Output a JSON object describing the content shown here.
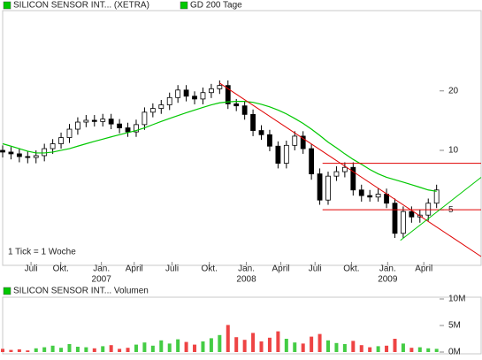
{
  "chart_data": [
    {
      "type": "candlestick",
      "x": [
        0,
        3,
        6,
        9,
        12,
        15,
        18,
        21,
        24,
        27,
        30,
        33,
        36,
        39,
        42,
        45,
        48,
        51,
        54,
        57,
        60,
        63,
        66,
        69,
        72,
        75,
        78,
        81,
        84,
        87,
        90,
        93,
        96,
        99,
        102,
        105,
        108,
        111,
        114,
        117,
        120,
        123,
        126,
        129,
        132,
        135,
        138,
        141,
        144,
        147,
        150,
        153,
        156
      ],
      "series": [
        {
          "name": "SILICON SENSOR INT... (XETRA)",
          "color": "#00c800",
          "candle_color": "#000000",
          "open": [
            10.0,
            9.8,
            9.6,
            9.3,
            9.2,
            9.4,
            10.2,
            10.8,
            11.6,
            12.8,
            13.9,
            14.2,
            14.0,
            14.4,
            13.6,
            13.0,
            12.4,
            13.5,
            15.6,
            16.3,
            17.0,
            18.5,
            20.2,
            18.8,
            18.2,
            19.6,
            20.5,
            21.3,
            17.2,
            16.8,
            15.2,
            12.6,
            12.0,
            10.5,
            8.6,
            10.6,
            11.8,
            10.2,
            7.6,
            5.6,
            7.4,
            7.8,
            8.2,
            6.3,
            5.9,
            5.8,
            6.0,
            5.4,
            3.8,
            4.9,
            4.6,
            4.7,
            5.4
          ],
          "high": [
            10.6,
            10.4,
            10.2,
            9.9,
            10.0,
            10.8,
            11.4,
            12.3,
            13.6,
            14.7,
            15.1,
            15.1,
            15.3,
            15.3,
            14.4,
            13.8,
            14.3,
            16.5,
            17.3,
            18.0,
            19.6,
            21.4,
            21.4,
            19.9,
            20.8,
            21.7,
            22.6,
            22.6,
            18.2,
            17.8,
            16.1,
            13.4,
            12.7,
            11.1,
            11.2,
            12.5,
            12.5,
            10.8,
            8.1,
            7.8,
            8.3,
            8.7,
            8.7,
            6.7,
            6.3,
            6.4,
            6.4,
            5.7,
            5.2,
            5.2,
            5.0,
            5.7,
            6.7
          ],
          "low": [
            9.2,
            9.0,
            8.7,
            8.6,
            8.6,
            8.8,
            9.6,
            10.2,
            10.9,
            12.0,
            13.1,
            13.2,
            13.2,
            12.8,
            12.2,
            11.7,
            11.7,
            12.7,
            14.7,
            15.3,
            16.0,
            17.4,
            17.7,
            17.1,
            17.1,
            18.4,
            19.3,
            16.2,
            15.8,
            14.3,
            11.8,
            11.3,
            9.9,
            8.1,
            8.1,
            10.0,
            9.6,
            7.1,
            5.3,
            5.3,
            7.0,
            7.3,
            5.9,
            5.5,
            5.5,
            5.5,
            5.1,
            3.6,
            3.6,
            4.3,
            4.3,
            4.4,
            5.1
          ],
          "close": [
            9.8,
            9.6,
            9.3,
            9.2,
            9.4,
            10.2,
            10.8,
            11.6,
            12.8,
            13.9,
            14.2,
            14.0,
            14.4,
            13.6,
            13.0,
            12.4,
            13.5,
            15.6,
            16.3,
            17.0,
            18.5,
            20.2,
            18.8,
            18.2,
            19.6,
            20.5,
            21.3,
            17.2,
            16.8,
            15.2,
            12.6,
            12.0,
            10.5,
            8.6,
            10.6,
            11.8,
            10.2,
            7.6,
            5.6,
            7.4,
            7.8,
            8.2,
            6.3,
            5.9,
            5.8,
            6.0,
            5.4,
            3.8,
            4.9,
            4.6,
            4.7,
            5.4,
            6.3
          ]
        },
        {
          "name": "GD 200 Tage",
          "color": "#00c800",
          "values": [
            10.8,
            10.5,
            10.2,
            9.9,
            9.7,
            9.7,
            9.8,
            10.0,
            10.2,
            10.5,
            10.8,
            11.1,
            11.4,
            11.7,
            12.0,
            12.3,
            12.6,
            13.0,
            13.5,
            14.0,
            14.5,
            15.0,
            15.5,
            16.0,
            16.5,
            17.0,
            17.4,
            17.6,
            17.7,
            17.7,
            17.5,
            17.1,
            16.6,
            16.0,
            15.3,
            14.5,
            13.7,
            12.8,
            11.9,
            11.0,
            10.3,
            9.6,
            9.0,
            8.5,
            8.0,
            7.6,
            7.3,
            7.1,
            6.9,
            6.7,
            6.5,
            6.3,
            6.2
          ]
        }
      ],
      "xlim": [
        0,
        172
      ],
      "xticks": [
        {
          "value": 10.2,
          "label": "Juli"
        },
        {
          "value": 20.9,
          "label": "Okt."
        },
        {
          "value": 35.5,
          "label": "Jan."
        },
        {
          "value": 47.3,
          "label": "April"
        },
        {
          "value": 60.9,
          "label": "Juli"
        },
        {
          "value": 74.3,
          "label": "Okt."
        },
        {
          "value": 87.6,
          "label": "Jan."
        },
        {
          "value": 100,
          "label": "April"
        },
        {
          "value": 112.3,
          "label": "Juli"
        },
        {
          "value": 125.4,
          "label": "Okt."
        },
        {
          "value": 138.4,
          "label": "Jan."
        },
        {
          "value": 151.4,
          "label": "April"
        }
      ],
      "year_labels": [
        {
          "value": 35.5,
          "label": "2007"
        },
        {
          "value": 87.6,
          "label": "2008"
        },
        {
          "value": 138.4,
          "label": "2009"
        }
      ],
      "ylim": [
        2.9,
        51
      ],
      "log_scale": true,
      "yticks": [
        5,
        10,
        20
      ],
      "annotation": "1 Tick = 1 Woche",
      "trendlines": [
        {
          "color": "#e00000",
          "x": [
            78,
            172
          ],
          "y": [
            21.9,
            2.9
          ]
        },
        {
          "color": "#e00000",
          "x": [
            115,
            172
          ],
          "y": [
            8.6,
            8.6
          ]
        },
        {
          "color": "#e00000",
          "x": [
            115,
            172
          ],
          "y": [
            5,
            5
          ]
        },
        {
          "color": "#00c800",
          "x": [
            143,
            172
          ],
          "y": [
            3.5,
            7.3
          ]
        }
      ]
    },
    {
      "type": "bar",
      "x": [
        0,
        3,
        6,
        9,
        12,
        15,
        18,
        21,
        24,
        27,
        30,
        33,
        36,
        39,
        42,
        45,
        48,
        51,
        54,
        57,
        60,
        63,
        66,
        69,
        72,
        75,
        78,
        81,
        84,
        87,
        90,
        93,
        96,
        99,
        102,
        105,
        108,
        111,
        114,
        117,
        120,
        123,
        126,
        129,
        132,
        135,
        138,
        141,
        144,
        147,
        150,
        153,
        156
      ],
      "series": [
        {
          "name": "SILICON SENSOR INT... Volumen",
          "color": "#00c800",
          "values": [
            600000,
            400000,
            500000,
            300000,
            700000,
            900000,
            1200000,
            800000,
            1500000,
            1000000,
            900000,
            700000,
            1100000,
            1300000,
            600000,
            800000,
            1400000,
            1800000,
            1200000,
            2200000,
            1600000,
            2400000,
            1900000,
            1400000,
            2000000,
            2600000,
            3200000,
            5100000,
            2800000,
            2300000,
            3600000,
            2000000,
            2700000,
            3900000,
            2500000,
            1800000,
            1600000,
            2900000,
            3400000,
            2200000,
            1700000,
            1500000,
            2100000,
            1300000,
            900000,
            1100000,
            1200000,
            2500000,
            1600000,
            800000,
            900000,
            700000,
            600000
          ]
        }
      ],
      "up_color": "#44cc44",
      "down_color": "#ee4444",
      "xlim": [
        0,
        172
      ],
      "ylim": [
        0,
        10000000
      ],
      "yticks": [
        {
          "value": 0,
          "label": "0M"
        },
        {
          "value": 5000000,
          "label": "5M"
        },
        {
          "value": 10000000,
          "label": "10M"
        }
      ]
    }
  ]
}
